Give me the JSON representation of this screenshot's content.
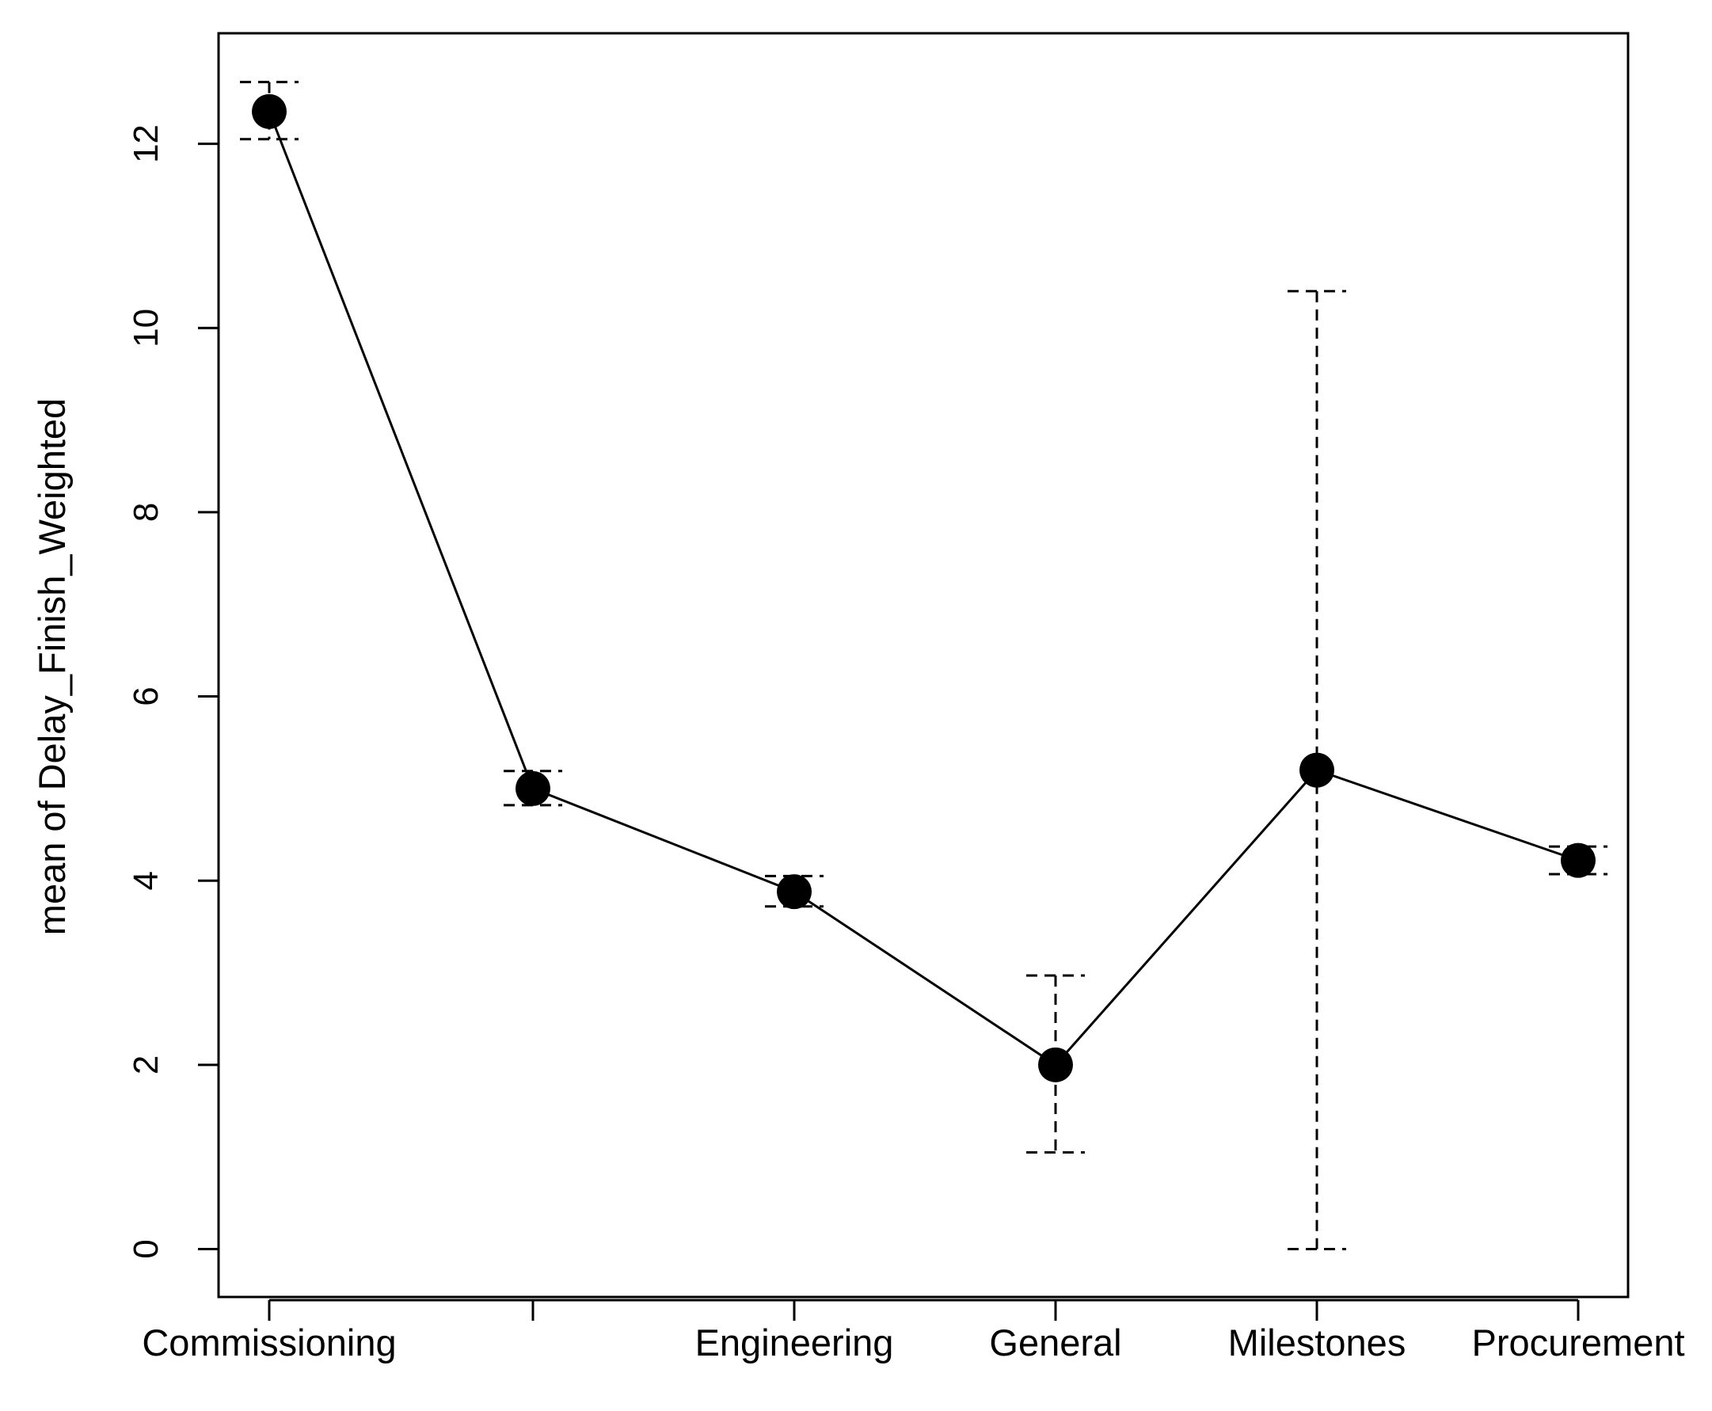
{
  "chart_data": {
    "type": "line",
    "title": "",
    "xlabel": "",
    "ylabel": "mean of Delay_Finish_Weighted",
    "categories": [
      "Commissioning",
      "",
      "Engineering",
      "General",
      "Milestones",
      "Procurement"
    ],
    "values": [
      12.35,
      5.0,
      3.88,
      2.0,
      5.2,
      4.22
    ],
    "error_low": [
      12.05,
      4.82,
      3.72,
      1.05,
      0.0,
      4.07
    ],
    "error_high": [
      12.67,
      5.19,
      4.05,
      2.97,
      10.4,
      4.37
    ],
    "yticks": [
      0,
      2,
      4,
      6,
      8,
      10,
      12
    ],
    "ylim": [
      -0.52,
      13.2
    ],
    "grid": false,
    "line_color": "#000000",
    "point_color": "#000000"
  }
}
